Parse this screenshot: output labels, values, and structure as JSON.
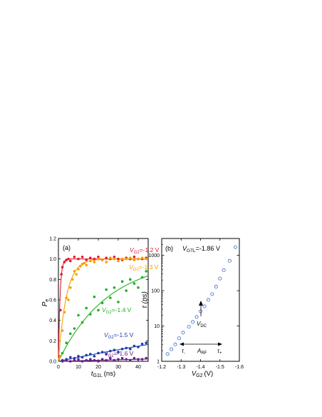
{
  "chart_data": [
    {
      "panel_label": "(a)",
      "type": "scatter",
      "ylabel_main": "P",
      "ylabel_sub": "e",
      "xlabel_main": "t",
      "xlabel_sub": "G1L",
      "xlabel_unit": "(ns)",
      "xlim": [
        0,
        45
      ],
      "ylim": [
        0,
        1.2
      ],
      "x_ticks": [
        "0",
        "10",
        "20",
        "30",
        "40"
      ],
      "y_ticks": [
        "0.0",
        "0.2",
        "0.4",
        "0.6",
        "0.8",
        "1.0",
        "1.2"
      ],
      "series": [
        {
          "label_main": "V",
          "label_sub": "G2",
          "label_value": "=-1.2 V",
          "color": "#e0192a",
          "tau": 0.8,
          "x": [
            0.5,
            1,
            1.5,
            2,
            3,
            4,
            5,
            6,
            8,
            10,
            12,
            14,
            16,
            18,
            20,
            22,
            24,
            26,
            28,
            30,
            32,
            34,
            36,
            38,
            40,
            42,
            44
          ],
          "y": [
            0.05,
            0.5,
            0.85,
            0.92,
            0.97,
            0.99,
            1.0,
            0.98,
            1.02,
            1.0,
            1.02,
            0.99,
            1.01,
            1.0,
            1.02,
            0.99,
            1.01,
            1.0,
            1.02,
            1.0,
            0.99,
            1.01,
            1.0,
            1.02,
            1.0,
            1.0,
            1.01
          ]
        },
        {
          "label_main": "V",
          "label_sub": "G2",
          "label_value": "=-1.3 V",
          "color": "#f5a000",
          "tau": 4.0,
          "x": [
            1,
            2,
            3,
            4,
            5,
            6,
            7,
            8,
            9,
            10,
            11,
            12,
            13,
            14,
            16,
            18,
            20,
            22,
            24,
            26,
            28,
            30,
            32,
            34,
            36,
            38,
            40,
            42,
            44
          ],
          "y": [
            0.05,
            0.3,
            0.48,
            0.62,
            0.6,
            0.72,
            0.8,
            0.88,
            0.85,
            0.9,
            0.93,
            0.95,
            0.96,
            0.94,
            0.98,
            0.97,
            1.0,
            0.99,
            0.97,
            1.01,
            1.0,
            0.98,
            1.0,
            1.0,
            1.01,
            0.99,
            1.0,
            1.01,
            1.0
          ]
        },
        {
          "label_main": "V",
          "label_sub": "G2",
          "label_value": "=-1.4 V",
          "color": "#22b022",
          "tau": 25,
          "x": [
            2,
            4,
            6,
            8,
            10,
            12,
            14,
            16,
            18,
            20,
            22,
            24,
            26,
            28,
            30,
            32,
            34,
            36,
            38,
            40,
            42,
            44
          ],
          "y": [
            0.08,
            0.18,
            0.27,
            0.32,
            0.45,
            0.38,
            0.52,
            0.46,
            0.63,
            0.5,
            0.57,
            0.7,
            0.62,
            0.72,
            0.58,
            0.78,
            0.69,
            0.8,
            0.76,
            0.72,
            0.82,
            0.88
          ]
        },
        {
          "label_main": "V",
          "label_sub": "G2",
          "label_value": "=-1.5 V",
          "color": "#1a3eb0",
          "tau": 250,
          "x": [
            2,
            4,
            6,
            8,
            10,
            12,
            14,
            16,
            18,
            20,
            22,
            24,
            26,
            28,
            30,
            32,
            34,
            36,
            38,
            40,
            42,
            44
          ],
          "y": [
            0.01,
            0.02,
            0.04,
            0.03,
            0.05,
            0.04,
            0.06,
            0.07,
            0.05,
            0.08,
            0.09,
            0.07,
            0.1,
            0.11,
            0.09,
            0.12,
            0.13,
            0.12,
            0.15,
            0.14,
            0.17,
            0.18
          ]
        },
        {
          "label_main": "V",
          "label_sub": "G2",
          "label_value": "=-1.6 V",
          "color": "#6a1a8a",
          "tau": 2000,
          "x": [
            2,
            4,
            6,
            8,
            10,
            12,
            14,
            16,
            18,
            20,
            22,
            24,
            26,
            28,
            30,
            32,
            34,
            36,
            38,
            40,
            42,
            44
          ],
          "y": [
            0.0,
            0.01,
            0.0,
            0.01,
            0.02,
            0.0,
            0.01,
            0.02,
            0.01,
            0.0,
            0.02,
            0.01,
            0.03,
            0.01,
            0.02,
            0.03,
            0.02,
            0.01,
            0.03,
            0.02,
            0.02,
            0.03
          ]
        }
      ]
    },
    {
      "panel_label": "(b)",
      "type": "scatter",
      "annotation_main": "V",
      "annotation_sub": "GTL",
      "annotation_value": "=-1.86 V",
      "ylabel": "τ (ns)",
      "xlabel_main": "V",
      "xlabel_sub": "G2",
      "xlabel_unit": "(V)",
      "xlim": [
        -1.2,
        -1.6
      ],
      "ylim": [
        1,
        3000
      ],
      "yscale": "log",
      "x_ticks": [
        "-1.2",
        "-1.3",
        "-1.4",
        "-1.5",
        "-1.6"
      ],
      "y_ticks": [
        "1",
        "10",
        "100",
        "1000"
      ],
      "marker_color": "#3a6ad0",
      "x": [
        -1.23,
        -1.25,
        -1.27,
        -1.29,
        -1.31,
        -1.34,
        -1.36,
        -1.38,
        -1.4,
        -1.42,
        -1.44,
        -1.46,
        -1.48,
        -1.5,
        -1.52,
        -1.55,
        -1.58
      ],
      "y": [
        1.6,
        2.2,
        3.0,
        4.5,
        6.5,
        9.5,
        13,
        18,
        26,
        36,
        55,
        80,
        130,
        220,
        380,
        700,
        1700
      ],
      "vdc_main": "V",
      "vdc_sub": "DC",
      "arf_main": "A",
      "arf_sub": "RF",
      "tau_minus": "τ",
      "tau_minus_sub": "-",
      "tau_plus": "τ",
      "tau_plus_sub": "+"
    }
  ]
}
